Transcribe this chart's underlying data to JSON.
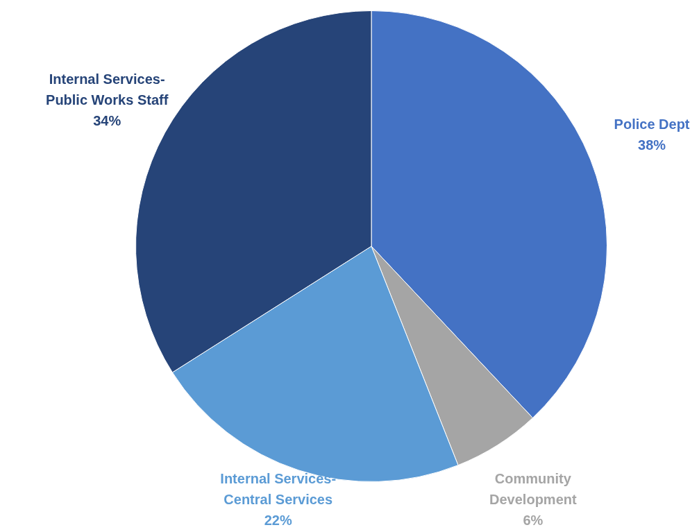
{
  "chart_data": {
    "type": "pie",
    "categories": [
      "Police Dept",
      "Community Development",
      "Internal Services-Central Services",
      "Internal Services-Public Works Staff"
    ],
    "values": [
      38,
      6,
      22,
      34
    ],
    "value_labels": [
      "38%",
      "6%",
      "22%",
      "34%"
    ],
    "colors": [
      "#4472c4",
      "#a5a5a5",
      "#5b9bd5",
      "#264478"
    ],
    "legend": false
  }
}
